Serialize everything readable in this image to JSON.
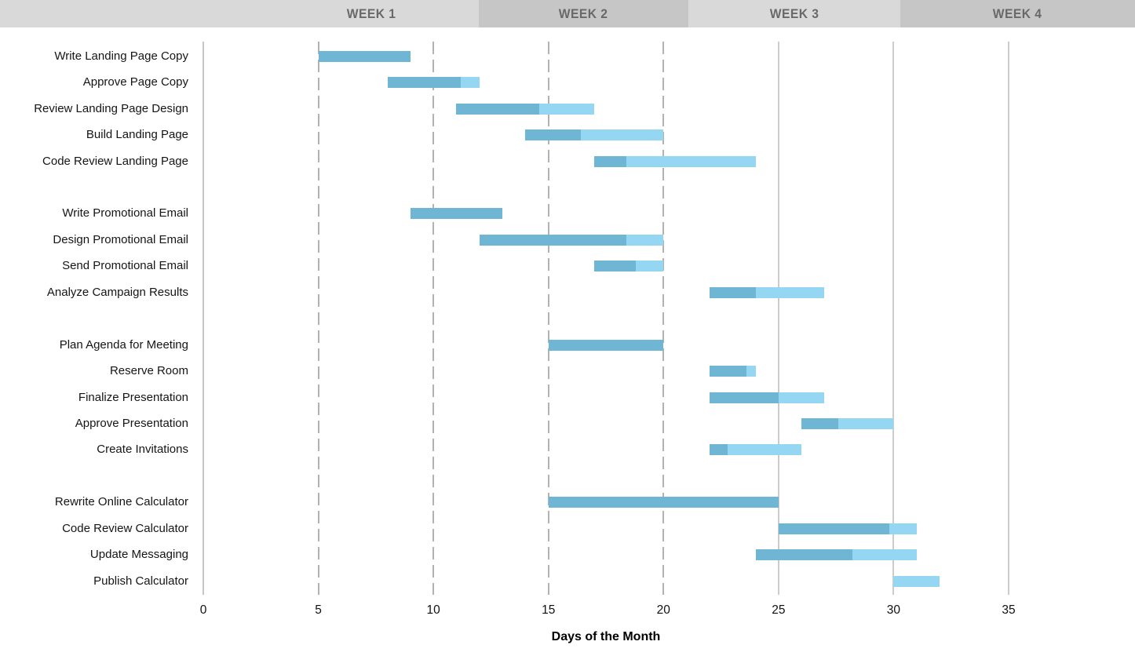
{
  "header": {
    "weeks": [
      {
        "label": "WEEK 1"
      },
      {
        "label": "WEEK 2"
      },
      {
        "label": "WEEK 3"
      },
      {
        "label": "WEEK 4"
      }
    ]
  },
  "chart_data": {
    "type": "gantt",
    "title": "",
    "xlabel": "Days of the Month",
    "x_ticks": [
      0,
      5,
      10,
      15,
      20,
      25,
      30,
      35
    ],
    "xlim": [
      0,
      40.5
    ],
    "layout": {
      "dashed_ticks": [
        5,
        10,
        15,
        20
      ],
      "solid_ticks": [
        0,
        25,
        30,
        35
      ],
      "grid": "vertical-only",
      "legend": "none",
      "bar_groups_separated_by_blank_row": true
    },
    "colors": {
      "complete": "#6eb6d3",
      "remaining": "#95d7f2",
      "week_band_light": "#d9d9d9",
      "week_band_dark": "#c6c6c6"
    },
    "groups": [
      {
        "tasks": [
          {
            "name": "Write Landing Page Copy",
            "start": 5,
            "end": 9,
            "pct_complete": 100
          },
          {
            "name": "Approve Page Copy",
            "start": 8,
            "end": 12,
            "pct_complete": 80
          },
          {
            "name": "Review Landing Page Design",
            "start": 11,
            "end": 17,
            "pct_complete": 60
          },
          {
            "name": "Build Landing Page",
            "start": 14,
            "end": 20,
            "pct_complete": 40
          },
          {
            "name": "Code Review Landing Page",
            "start": 17,
            "end": 24,
            "pct_complete": 20
          }
        ]
      },
      {
        "tasks": [
          {
            "name": "Write Promotional Email",
            "start": 9,
            "end": 13,
            "pct_complete": 100
          },
          {
            "name": "Design Promotional Email",
            "start": 12,
            "end": 20,
            "pct_complete": 80
          },
          {
            "name": "Send Promotional Email",
            "start": 17,
            "end": 20,
            "pct_complete": 60
          },
          {
            "name": "Analyze Campaign Results",
            "start": 22,
            "end": 27,
            "pct_complete": 40
          }
        ]
      },
      {
        "tasks": [
          {
            "name": "Plan Agenda for Meeting",
            "start": 15,
            "end": 20,
            "pct_complete": 100
          },
          {
            "name": "Reserve Room",
            "start": 22,
            "end": 24,
            "pct_complete": 80
          },
          {
            "name": "Finalize Presentation",
            "start": 22,
            "end": 27,
            "pct_complete": 60
          },
          {
            "name": "Approve Presentation",
            "start": 26,
            "end": 30,
            "pct_complete": 40
          },
          {
            "name": "Create Invitations",
            "start": 22,
            "end": 26,
            "pct_complete": 20
          }
        ]
      },
      {
        "tasks": [
          {
            "name": "Rewrite Online Calculator",
            "start": 15,
            "end": 25,
            "pct_complete": 100
          },
          {
            "name": "Code Review Calculator",
            "start": 25,
            "end": 31,
            "pct_complete": 80
          },
          {
            "name": "Update Messaging",
            "start": 24,
            "end": 31,
            "pct_complete": 60
          },
          {
            "name": "Publish Calculator",
            "start": 30,
            "end": 32,
            "pct_complete": 0
          }
        ]
      }
    ]
  }
}
